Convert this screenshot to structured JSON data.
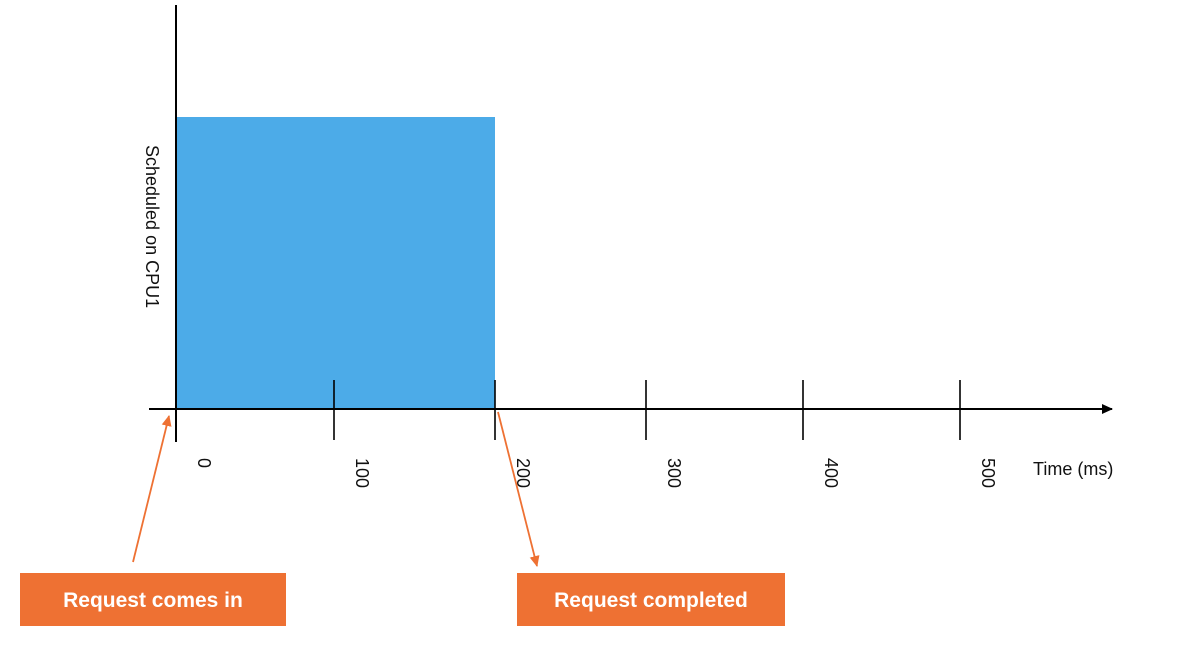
{
  "y_axis_label": "Scheduled on CPU1",
  "x_axis_label": "Time (ms)",
  "ticks": [
    "0",
    "100",
    "200",
    "300",
    "400",
    "500"
  ],
  "scheduled_block": {
    "start_ms": 0,
    "end_ms": 200
  },
  "callouts": {
    "request_in": "Request comes in",
    "request_completed": "Request completed"
  },
  "colors": {
    "block": "#4cabe8",
    "callout": "#ee7133",
    "axis": "#000000"
  }
}
